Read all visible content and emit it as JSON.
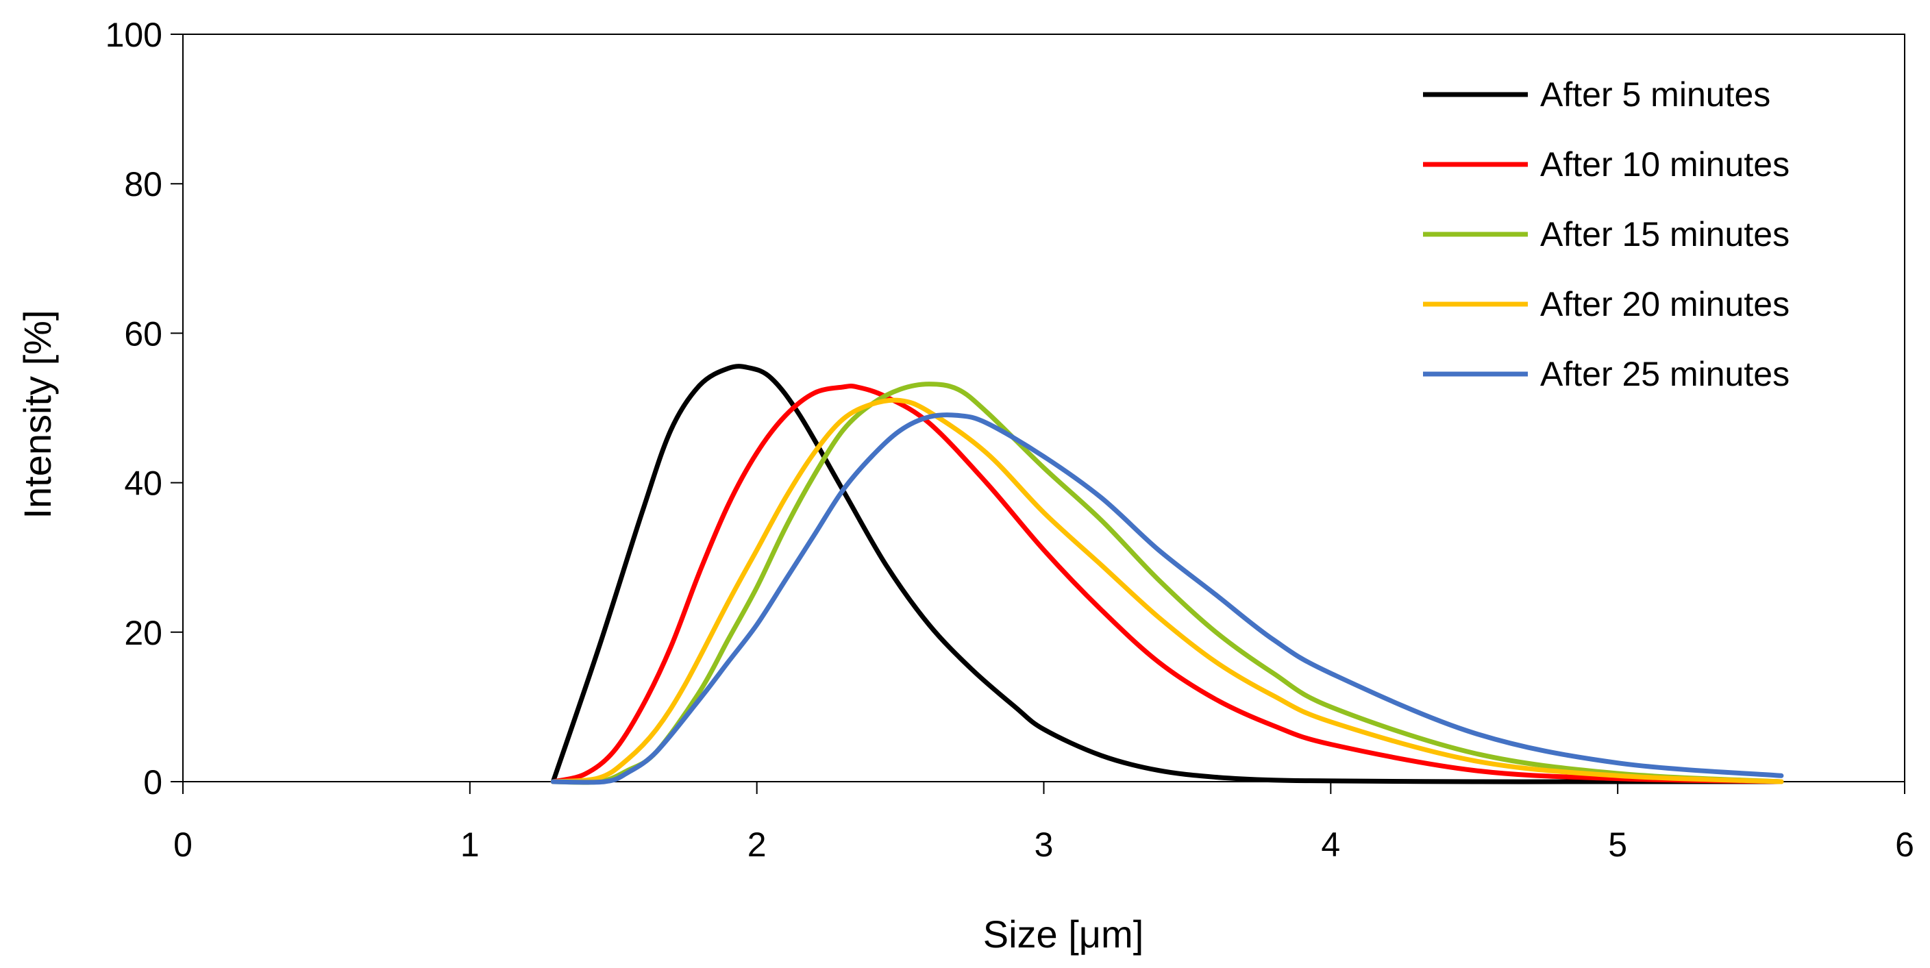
{
  "chart_data": {
    "type": "line",
    "title": "",
    "xlabel": "Size [μm]",
    "ylabel": "Intensity [%]",
    "xlim": [
      0,
      6
    ],
    "ylim": [
      0,
      100
    ],
    "xticks": [
      0,
      1,
      2,
      3,
      4,
      5,
      6
    ],
    "yticks": [
      0,
      20,
      40,
      60,
      80,
      100
    ],
    "grid": false,
    "legend_position": "top-right",
    "series": [
      {
        "name": "After 5 minutes",
        "color": "#000000",
        "x": [
          1.29,
          1.45,
          1.6,
          1.7,
          1.8,
          1.9,
          1.97,
          2.05,
          2.15,
          2.3,
          2.45,
          2.6,
          2.75,
          2.9,
          3.0,
          3.2,
          3.4,
          3.6,
          3.8,
          4.0,
          4.5,
          5.0,
          5.57
        ],
        "values": [
          0,
          18,
          36,
          47,
          53,
          55.3,
          55.4,
          54,
          49,
          39,
          29,
          21,
          15,
          10,
          7,
          3.5,
          1.5,
          0.6,
          0.2,
          0.1,
          0,
          0,
          0
        ]
      },
      {
        "name": "After 10 minutes",
        "color": "#FF0000",
        "x": [
          1.29,
          1.4,
          1.5,
          1.6,
          1.7,
          1.8,
          1.9,
          2.0,
          2.1,
          2.2,
          2.3,
          2.35,
          2.45,
          2.6,
          2.8,
          3.0,
          3.2,
          3.4,
          3.6,
          3.8,
          4.0,
          4.5,
          5.0,
          5.57
        ],
        "values": [
          0,
          1,
          4,
          10,
          18,
          28,
          37,
          44,
          49,
          52,
          52.8,
          52.8,
          51.5,
          48,
          40,
          31,
          23,
          16,
          11,
          7.5,
          5,
          1.5,
          0.4,
          0
        ]
      },
      {
        "name": "After 15 minutes",
        "color": "#92C01F",
        "x": [
          1.29,
          1.45,
          1.55,
          1.65,
          1.8,
          1.9,
          2.0,
          2.1,
          2.2,
          2.3,
          2.4,
          2.5,
          2.6,
          2.7,
          2.8,
          3.0,
          3.2,
          3.4,
          3.6,
          3.8,
          4.0,
          4.5,
          5.0,
          5.57
        ],
        "values": [
          0,
          0,
          1.5,
          4,
          12,
          19,
          26,
          34,
          41,
          47,
          50.5,
          52.5,
          53.2,
          52.5,
          49.5,
          42,
          35,
          27,
          20,
          14.5,
          10,
          3.8,
          1.1,
          0
        ]
      },
      {
        "name": "After 20 minutes",
        "color": "#FFC000",
        "x": [
          1.29,
          1.45,
          1.55,
          1.65,
          1.75,
          1.9,
          2.0,
          2.1,
          2.2,
          2.3,
          2.4,
          2.5,
          2.6,
          2.8,
          3.0,
          3.2,
          3.4,
          3.6,
          3.8,
          4.0,
          4.5,
          5.0,
          5.57
        ],
        "values": [
          0,
          0.5,
          3,
          7,
          13,
          24,
          31,
          38,
          44,
          48.5,
          50.5,
          51,
          49.5,
          44,
          36,
          29,
          22,
          16,
          11.5,
          8,
          2.8,
          0.8,
          0
        ]
      },
      {
        "name": "After 25 minutes",
        "color": "#4472C4",
        "x": [
          1.29,
          1.47,
          1.55,
          1.65,
          1.8,
          1.9,
          2.0,
          2.1,
          2.2,
          2.3,
          2.4,
          2.5,
          2.6,
          2.7,
          2.8,
          3.0,
          3.2,
          3.4,
          3.6,
          3.8,
          4.0,
          4.5,
          5.0,
          5.57
        ],
        "values": [
          0,
          0,
          1.2,
          4,
          11,
          16,
          21,
          27,
          33,
          39,
          43.5,
          47,
          48.8,
          49,
          48,
          43.5,
          38,
          31,
          25,
          19,
          14.5,
          6.5,
          2.5,
          0.8
        ]
      }
    ]
  }
}
